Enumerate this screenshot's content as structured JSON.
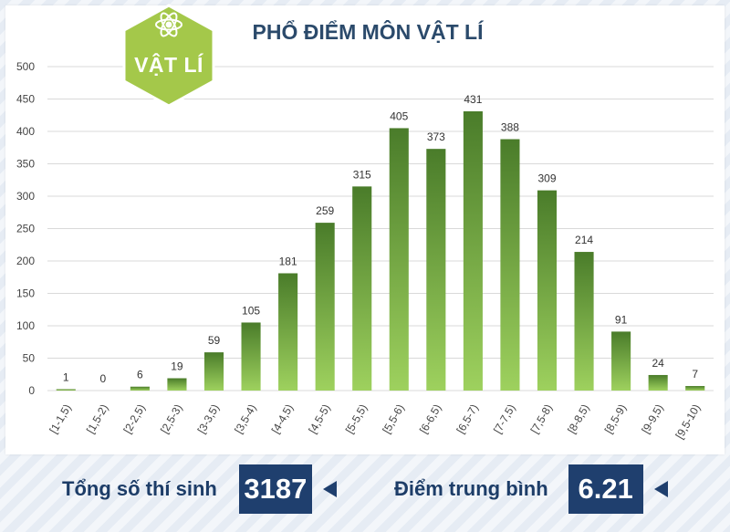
{
  "header": {
    "title": "PHỔ ĐIỂM MÔN VẬT LÍ",
    "badge_label": "VẬT LÍ",
    "badge_icon": "atom-icon",
    "badge_color": "#a4c84a"
  },
  "chart_data": {
    "type": "bar",
    "title": "PHỔ ĐIỂM MÔN VẬT LÍ",
    "categories": [
      "[1-1,5)",
      "[1,5-2)",
      "[2-2,5)",
      "[2,5-3)",
      "[3-3,5)",
      "[3,5-4)",
      "[4-4,5)",
      "[4,5-5)",
      "[5-5,5)",
      "[5,5-6)",
      "[6-6,5)",
      "[6,5-7)",
      "[7-7,5)",
      "[7,5-8)",
      "[8-8,5)",
      "[8,5-9)",
      "[9-9,5)",
      "[9,5-10)"
    ],
    "values": [
      1,
      0,
      6,
      19,
      59,
      105,
      181,
      259,
      315,
      405,
      373,
      431,
      388,
      309,
      214,
      91,
      24,
      7
    ],
    "ylim": [
      0,
      500
    ],
    "yticks": [
      0,
      50,
      100,
      150,
      200,
      250,
      300,
      350,
      400,
      450,
      500
    ],
    "xlabel": "",
    "ylabel": "",
    "grid": true,
    "bar_color_top": "#4a7c2a",
    "bar_color_bottom": "#9ed15e"
  },
  "footer": {
    "total_label": "Tổng số thí sinh",
    "total_value": "3187",
    "average_label": "Điểm trung bình",
    "average_value": "6.21"
  }
}
